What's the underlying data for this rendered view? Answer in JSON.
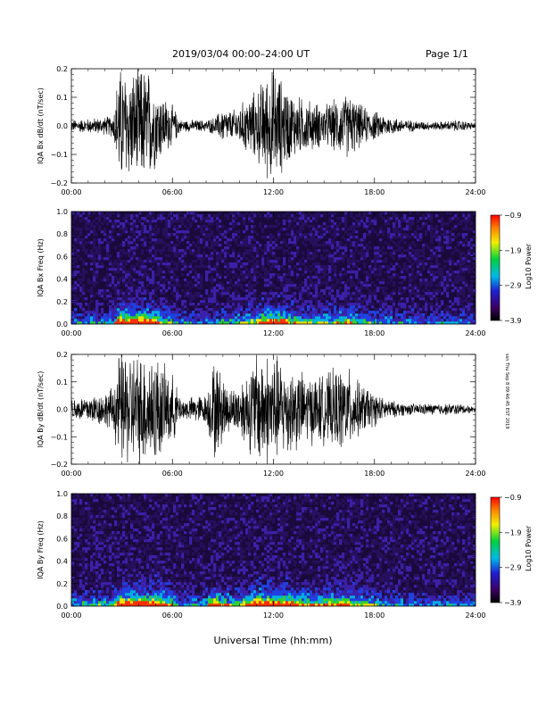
{
  "header": {
    "title": "2019/03/04  00:00–24:00 UT",
    "page": "Page 1/1"
  },
  "footer": {
    "xlabel": "Universal Time (hh:mm)",
    "stamp": "ssn Thu Sep 8 09:46:45 EST 2019"
  },
  "chart_data": [
    {
      "type": "line",
      "ylabel": "IQA Bx dB/dt (nT/sec)",
      "x_ticks": [
        "00:00",
        "06:00",
        "12:00",
        "18:00",
        "24:00"
      ],
      "y_ticks": [
        "−0.2",
        "−0.1",
        "0.0",
        "0.1",
        "0.2"
      ],
      "xlim": [
        0,
        24
      ],
      "ylim": [
        -0.2,
        0.2
      ],
      "series": [
        {
          "values_envelope_hours": [
            0,
            1,
            2,
            2.5,
            2.8,
            3.0,
            3.5,
            4.0,
            4.5,
            5.0,
            5.5,
            6.0,
            6.5,
            7.0,
            7.5,
            8.0,
            8.5,
            9.0,
            9.5,
            10.0,
            10.5,
            11.0,
            11.5,
            12.0,
            12.5,
            13.0,
            13.5,
            14.0,
            15.0,
            16.0,
            16.5,
            17.0,
            17.5,
            18.0,
            18.5,
            19.0,
            20.0,
            21.0,
            22.0,
            23.0,
            24.0
          ],
          "values_envelope_amplitude": [
            0.02,
            0.025,
            0.03,
            0.04,
            0.2,
            0.2,
            0.18,
            0.2,
            0.2,
            0.14,
            0.1,
            0.07,
            0.02,
            0.02,
            0.02,
            0.02,
            0.03,
            0.06,
            0.05,
            0.07,
            0.1,
            0.12,
            0.17,
            0.2,
            0.16,
            0.12,
            0.1,
            0.09,
            0.07,
            0.1,
            0.11,
            0.08,
            0.06,
            0.05,
            0.04,
            0.03,
            0.02,
            0.015,
            0.015,
            0.02,
            0.01
          ]
        }
      ]
    },
    {
      "type": "heatmap",
      "ylabel": "IQA Bx Freq (Hz)",
      "x_ticks": [
        "00:00",
        "06:00",
        "12:00",
        "18:00",
        "24:00"
      ],
      "y_ticks": [
        "0.0",
        "0.2",
        "0.4",
        "0.6",
        "0.8",
        "1.0"
      ],
      "xlim": [
        0,
        24
      ],
      "ylim": [
        0,
        1.0
      ],
      "colorbar": {
        "label": "Log10 Power",
        "ticks": [
          "−0.9",
          "−1.9",
          "−2.9",
          "−3.9"
        ],
        "range": [
          -3.9,
          -0.9
        ]
      }
    },
    {
      "type": "line",
      "ylabel": "IQA By dB/dt (nT/sec)",
      "x_ticks": [
        "00:00",
        "06:00",
        "12:00",
        "18:00",
        "24:00"
      ],
      "y_ticks": [
        "−0.2",
        "−0.1",
        "0.0",
        "0.1",
        "0.2"
      ],
      "xlim": [
        0,
        24
      ],
      "ylim": [
        -0.2,
        0.2
      ],
      "series": [
        {
          "values_envelope_hours": [
            0,
            1,
            2,
            2.5,
            2.8,
            3.0,
            3.5,
            4.0,
            4.5,
            5.0,
            5.5,
            6.0,
            6.5,
            7.0,
            7.5,
            8.0,
            8.5,
            9.0,
            9.5,
            10.0,
            10.5,
            11.0,
            11.5,
            12.0,
            12.5,
            13.0,
            13.5,
            14.0,
            15.0,
            16.0,
            16.5,
            17.0,
            17.5,
            18.0,
            18.5,
            19.0,
            20.0,
            21.0,
            22.0,
            23.0,
            24.0
          ],
          "values_envelope_amplitude": [
            0.04,
            0.05,
            0.06,
            0.08,
            0.2,
            0.2,
            0.2,
            0.2,
            0.2,
            0.2,
            0.15,
            0.12,
            0.04,
            0.04,
            0.05,
            0.05,
            0.18,
            0.12,
            0.07,
            0.1,
            0.14,
            0.2,
            0.2,
            0.2,
            0.17,
            0.16,
            0.14,
            0.12,
            0.12,
            0.15,
            0.14,
            0.1,
            0.08,
            0.06,
            0.04,
            0.03,
            0.02,
            0.02,
            0.02,
            0.02,
            0.01
          ]
        }
      ]
    },
    {
      "type": "heatmap",
      "ylabel": "IQA By Freq (Hz)",
      "x_ticks": [
        "00:00",
        "06:00",
        "12:00",
        "18:00",
        "24:00"
      ],
      "y_ticks": [
        "0.0",
        "0.2",
        "0.4",
        "0.6",
        "0.8",
        "1.0"
      ],
      "xlim": [
        0,
        24
      ],
      "ylim": [
        0,
        1.0
      ],
      "colorbar": {
        "label": "Log10 Power",
        "ticks": [
          "−0.9",
          "−1.9",
          "−2.9",
          "−3.9"
        ],
        "range": [
          -3.9,
          -0.9
        ]
      }
    }
  ]
}
